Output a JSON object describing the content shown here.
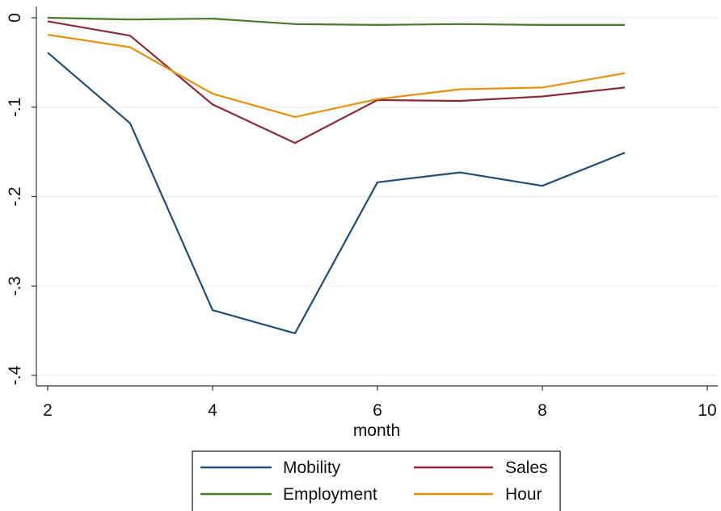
{
  "chart_data": {
    "type": "line",
    "title": "",
    "xlabel": "month",
    "ylabel": "",
    "xlim": [
      2,
      10
    ],
    "ylim": [
      -0.4,
      0
    ],
    "x_ticks": [
      2,
      4,
      6,
      8,
      10
    ],
    "x_tick_labels": [
      "2",
      "4",
      "6",
      "8",
      "10"
    ],
    "y_ticks": [
      0,
      -0.1,
      -0.2,
      -0.3,
      -0.4
    ],
    "y_tick_labels": [
      "0",
      "-.1",
      "-.2",
      "-.3",
      "-.4"
    ],
    "grid": true,
    "legend_position": "bottom",
    "x": [
      2,
      3,
      4,
      5,
      6,
      7,
      8,
      9
    ],
    "series": [
      {
        "name": "Mobility",
        "color": "#1f4e79",
        "values": [
          -0.039,
          -0.118,
          -0.327,
          -0.353,
          -0.184,
          -0.173,
          -0.188,
          -0.151
        ]
      },
      {
        "name": "Sales",
        "color": "#8b2b3a",
        "values": [
          -0.004,
          -0.02,
          -0.097,
          -0.14,
          -0.092,
          -0.093,
          -0.088,
          -0.078
        ]
      },
      {
        "name": "Employment",
        "color": "#4a7a2a",
        "values": [
          0.0,
          -0.002,
          -0.001,
          -0.007,
          -0.008,
          -0.007,
          -0.008,
          -0.008
        ]
      },
      {
        "name": "Hour",
        "color": "#e8900c",
        "values": [
          -0.019,
          -0.033,
          -0.085,
          -0.111,
          -0.091,
          -0.08,
          -0.078,
          -0.062
        ]
      }
    ]
  }
}
